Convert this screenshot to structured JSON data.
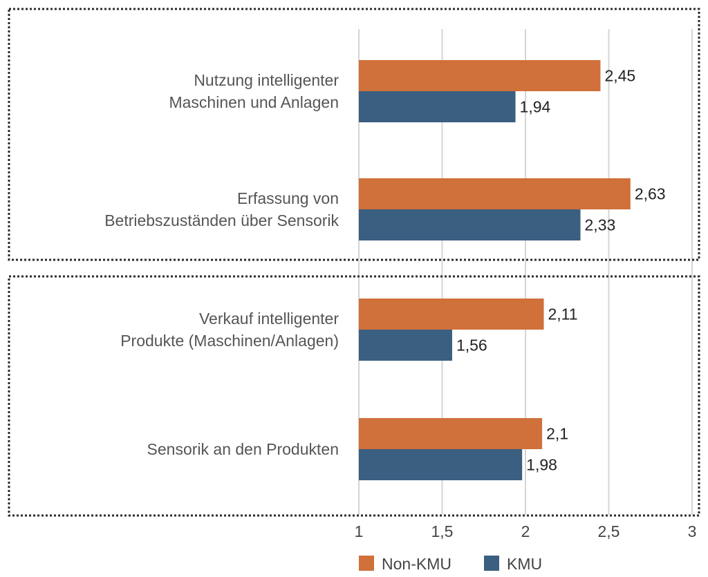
{
  "chart_data": {
    "type": "bar",
    "orientation": "horizontal",
    "categories": [
      [
        "Nutzung intelligenter",
        "Maschinen und Anlagen"
      ],
      [
        "Erfassung von",
        "Betriebszuständen über Sensorik"
      ],
      [
        "Verkauf intelligenter",
        "Produkte (Maschinen/Anlagen)"
      ],
      [
        "Sensorik an den Produkten"
      ]
    ],
    "series": [
      {
        "name": "Non-KMU",
        "color": "#d0703a",
        "values": [
          2.45,
          2.63,
          2.11,
          2.1
        ],
        "labels": [
          "2,45",
          "2,63",
          "2,11",
          "2,1"
        ]
      },
      {
        "name": "KMU",
        "color": "#3a5f80",
        "values": [
          1.94,
          2.33,
          1.56,
          1.98
        ],
        "labels": [
          "1,94",
          "2,33",
          "1,56",
          "1,98"
        ]
      }
    ],
    "xlim": [
      1,
      3
    ],
    "ticks": [
      1,
      1.5,
      2,
      2.5,
      3
    ],
    "tick_labels": [
      "1",
      "1,5",
      "2",
      "2,5",
      "3"
    ],
    "grid": true,
    "legend": "bottom",
    "groups_boxed": [
      [
        0,
        1
      ],
      [
        2,
        3
      ]
    ],
    "title": "",
    "xlabel": "",
    "ylabel": ""
  }
}
